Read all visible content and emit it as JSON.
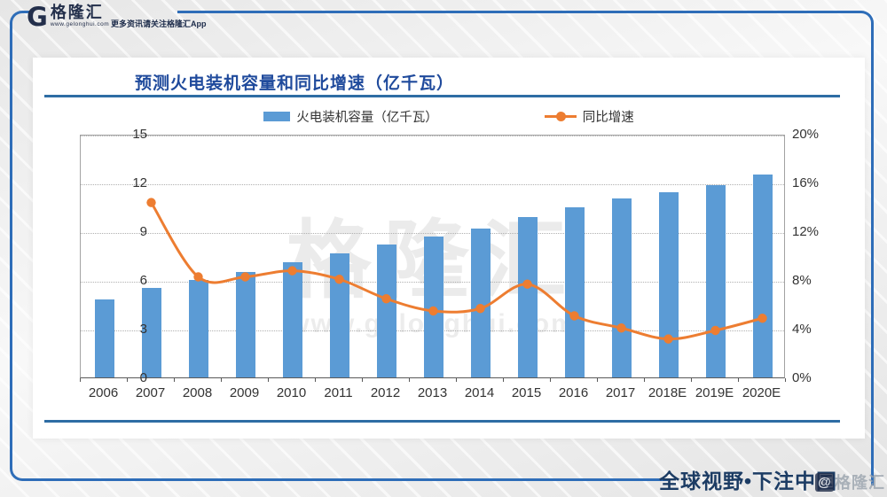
{
  "header": {
    "logo_glyph": "G",
    "brand": "格隆汇",
    "brand_url": "www.gelonghui.com",
    "tagline": "更多资讯请关注格隆汇App"
  },
  "chart": {
    "title": "预测火电装机容量和同比增速（亿千瓦）",
    "legend": {
      "bar_label": "火电装机容量（亿千瓦）",
      "line_label": "同比增速"
    }
  },
  "chart_data": {
    "type": "bar",
    "combo": "bar+line",
    "title": "预测火电装机容量和同比增速（亿千瓦）",
    "categories": [
      "2006",
      "2007",
      "2008",
      "2009",
      "2010",
      "2011",
      "2012",
      "2013",
      "2014",
      "2015",
      "2016",
      "2017",
      "2018E",
      "2019E",
      "2020E"
    ],
    "series": [
      {
        "name": "火电装机容量（亿千瓦）",
        "type": "bar",
        "axis": "left",
        "color": "#5b9bd5",
        "values": [
          4.8,
          5.5,
          6.0,
          6.5,
          7.1,
          7.65,
          8.2,
          8.65,
          9.15,
          9.85,
          10.5,
          11.0,
          11.4,
          11.85,
          12.5
        ]
      },
      {
        "name": "同比增速",
        "type": "line",
        "axis": "right",
        "color": "#ed7d31",
        "values": [
          null,
          14.5,
          8.4,
          8.4,
          8.9,
          8.2,
          6.6,
          5.6,
          5.8,
          7.8,
          5.2,
          4.2,
          3.3,
          4.0,
          5.0
        ]
      }
    ],
    "left_axis": {
      "label": "亿千瓦",
      "range": [
        0,
        15
      ],
      "ticks": [
        0,
        3,
        6,
        9,
        12,
        15
      ]
    },
    "right_axis": {
      "label": "同比增速",
      "range": [
        0,
        20
      ],
      "ticks": [
        "0%",
        "4%",
        "8%",
        "12%",
        "16%",
        "20%"
      ],
      "tick_values": [
        0,
        4,
        8,
        12,
        16,
        20
      ]
    },
    "grid": "horizontal dotted",
    "legend_position": "top"
  },
  "watermark": {
    "big": "格隆汇",
    "url": "www.gelonghui.com"
  },
  "footer": {
    "slogan": "全球视野•下注中国",
    "watermark_at": "@",
    "watermark_text": "格隆汇"
  },
  "colors": {
    "bar": "#5b9bd5",
    "line": "#ed7d31",
    "frame_blue": "#2e6db8",
    "title_blue": "#1f4a9c"
  }
}
